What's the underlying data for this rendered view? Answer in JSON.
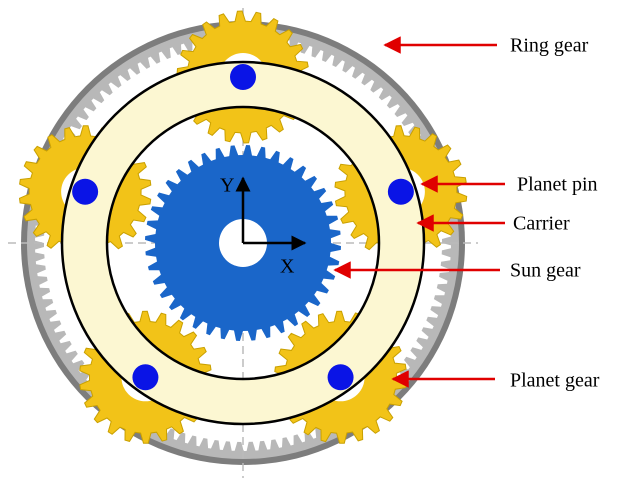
{
  "labels": {
    "ring_gear": "Ring gear",
    "planet_pin": "Planet pin",
    "carrier": "Carrier",
    "sun_gear": "Sun gear",
    "planet_gear": "Planet gear"
  },
  "axes": {
    "x": "X",
    "y": "Y"
  }
}
